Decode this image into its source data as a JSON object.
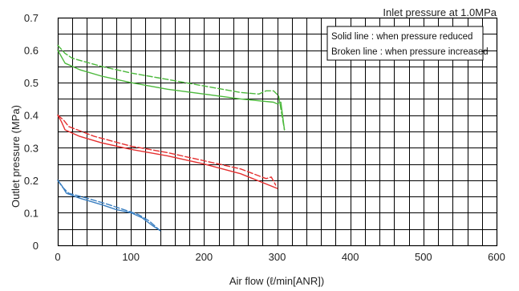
{
  "chart_data": {
    "type": "line",
    "title": "",
    "annotation": "Inlet pressure at 1.0MPa",
    "xlabel": "Air flow (ℓ/min[ANR])",
    "ylabel": "Outlet pressure (MPa)",
    "xlim": [
      0,
      600
    ],
    "ylim": [
      0,
      0.7
    ],
    "x_ticks": [
      0,
      100,
      200,
      300,
      400,
      500,
      600
    ],
    "x_tick_labels": [
      "0",
      "100",
      "200",
      "300",
      "400",
      "500",
      "600"
    ],
    "y_ticks": [
      0,
      0.1,
      0.2,
      0.3,
      0.4,
      0.5,
      0.6,
      0.7
    ],
    "y_tick_labels": [
      "0",
      "0.1",
      "0.2",
      "0.3",
      "0.4",
      "0.5",
      "0.6",
      "0.7"
    ],
    "grid": true,
    "grid_x_step": 20,
    "grid_y_step": 0.05,
    "legend_placement": "top-right",
    "legend_entries": [
      "Solid line : when pressure reduced",
      "Broken line : when pressure increased"
    ],
    "series": [
      {
        "color": "#3a7fc1",
        "style": "solid",
        "points": [
          [
            0,
            0.2
          ],
          [
            5,
            0.185
          ],
          [
            12,
            0.16
          ],
          [
            30,
            0.145
          ],
          [
            60,
            0.125
          ],
          [
            80,
            0.11
          ],
          [
            100,
            0.1
          ],
          [
            115,
            0.085
          ],
          [
            130,
            0.06
          ],
          [
            140,
            0.045
          ]
        ]
      },
      {
        "color": "#3a7fc1",
        "style": "dashed",
        "points": [
          [
            0,
            0.2
          ],
          [
            6,
            0.18
          ],
          [
            15,
            0.16
          ],
          [
            40,
            0.145
          ],
          [
            70,
            0.125
          ],
          [
            90,
            0.11
          ],
          [
            110,
            0.095
          ],
          [
            125,
            0.075
          ],
          [
            140,
            0.045
          ]
        ]
      },
      {
        "color": "#e53030",
        "style": "solid",
        "points": [
          [
            0,
            0.4
          ],
          [
            5,
            0.38
          ],
          [
            10,
            0.355
          ],
          [
            30,
            0.335
          ],
          [
            60,
            0.315
          ],
          [
            100,
            0.295
          ],
          [
            150,
            0.275
          ],
          [
            200,
            0.25
          ],
          [
            250,
            0.22
          ],
          [
            300,
            0.175
          ]
        ]
      },
      {
        "color": "#e53030",
        "style": "dashed",
        "points": [
          [
            0,
            0.4
          ],
          [
            8,
            0.385
          ],
          [
            15,
            0.365
          ],
          [
            50,
            0.335
          ],
          [
            100,
            0.305
          ],
          [
            150,
            0.285
          ],
          [
            200,
            0.26
          ],
          [
            250,
            0.235
          ],
          [
            285,
            0.205
          ],
          [
            292,
            0.21
          ],
          [
            298,
            0.185
          ]
        ]
      },
      {
        "color": "#4cb83c",
        "style": "solid",
        "points": [
          [
            0,
            0.6
          ],
          [
            10,
            0.56
          ],
          [
            30,
            0.54
          ],
          [
            60,
            0.52
          ],
          [
            100,
            0.5
          ],
          [
            150,
            0.48
          ],
          [
            200,
            0.465
          ],
          [
            250,
            0.45
          ],
          [
            295,
            0.44
          ],
          [
            300,
            0.435
          ],
          [
            305,
            0.44
          ],
          [
            310,
            0.355
          ]
        ]
      },
      {
        "color": "#4cb83c",
        "style": "dashed",
        "points": [
          [
            0,
            0.615
          ],
          [
            10,
            0.59
          ],
          [
            20,
            0.575
          ],
          [
            60,
            0.55
          ],
          [
            100,
            0.53
          ],
          [
            150,
            0.51
          ],
          [
            200,
            0.49
          ],
          [
            250,
            0.47
          ],
          [
            275,
            0.465
          ],
          [
            285,
            0.475
          ],
          [
            295,
            0.475
          ],
          [
            302,
            0.46
          ],
          [
            310,
            0.355
          ]
        ]
      }
    ]
  }
}
